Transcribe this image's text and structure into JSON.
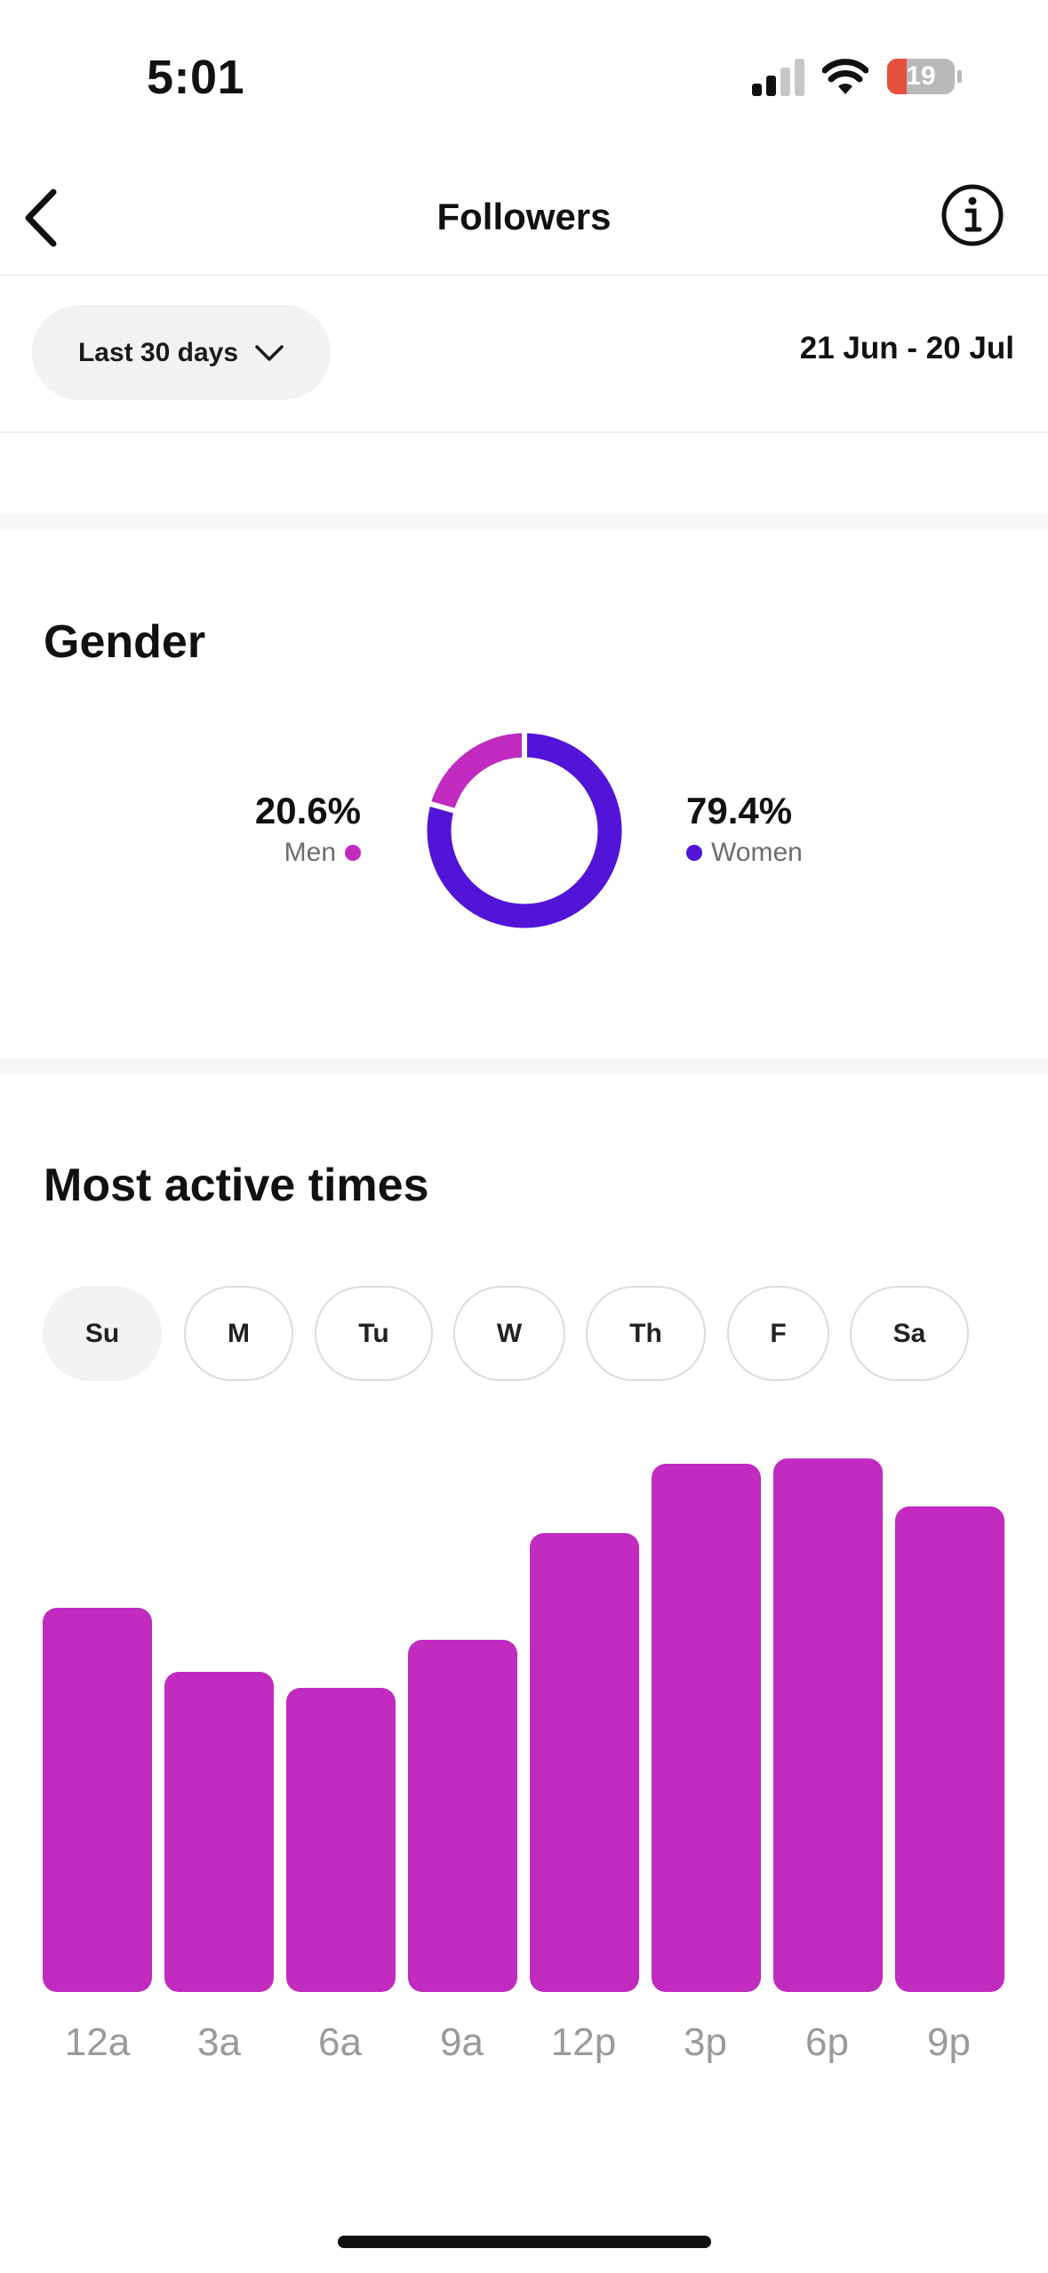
{
  "status_bar": {
    "time": "5:01",
    "battery": "19",
    "battery_color": "#e5503c"
  },
  "header": {
    "title": "Followers",
    "back_icon": "chevron-left-icon",
    "info_icon": "info-circle-icon"
  },
  "filters": {
    "range_label": "Last 30 days",
    "date_range": "21 Jun - 20 Jul"
  },
  "gender": {
    "title": "Gender",
    "men": {
      "percent": "20.6%",
      "label": "Men",
      "color": "#c12bbf"
    },
    "women": {
      "percent": "79.4%",
      "label": "Women",
      "color": "#5214d6"
    }
  },
  "active_times": {
    "title": "Most active times",
    "days": [
      {
        "label": "Su",
        "active": true
      },
      {
        "label": "M",
        "active": false
      },
      {
        "label": "Tu",
        "active": false
      },
      {
        "label": "W",
        "active": false
      },
      {
        "label": "Th",
        "active": false
      },
      {
        "label": "F",
        "active": false
      },
      {
        "label": "Sa",
        "active": false
      }
    ]
  },
  "chart_data": {
    "type": "bar",
    "categories": [
      "12a",
      "3a",
      "6a",
      "9a",
      "12p",
      "3p",
      "6p",
      "9p"
    ],
    "values": [
      72,
      60,
      57,
      66,
      86,
      99,
      100,
      91
    ],
    "ylim": [
      0,
      100
    ],
    "bar_color": "#c12bbf"
  }
}
